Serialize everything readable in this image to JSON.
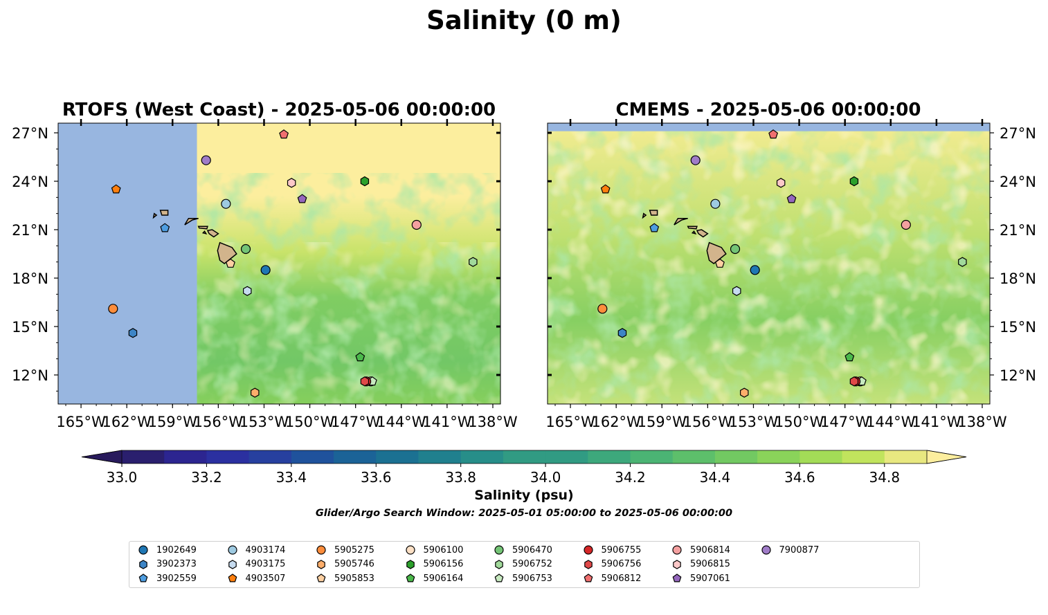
{
  "title": "Salinity (0 m)",
  "colors": {
    "land": "#d2b48c",
    "missing": "#98b6e0"
  },
  "chart_data": [
    {
      "type": "heatmap",
      "title": "RTOFS (West Coast) - 2025-05-06 00:00:00",
      "xlim": [
        -166.5,
        -137.5
      ],
      "ylim": [
        10.2,
        27.6
      ],
      "x_ticks": [
        -165,
        -162,
        -159,
        -156,
        -153,
        -150,
        -147,
        -144,
        -141,
        -138
      ],
      "x_tick_labels": [
        "165°W",
        "162°W",
        "159°W",
        "156°W",
        "153°W",
        "150°W",
        "147°W",
        "144°W",
        "141°W",
        "138°W"
      ],
      "y_ticks": [
        12,
        15,
        18,
        21,
        24,
        27
      ],
      "y_tick_labels": [
        "12°N",
        "15°N",
        "18°N",
        "21°N",
        "24°N",
        "27°N"
      ],
      "no_data_west_of_lon": -157.4,
      "field_note": "Salinity field; high values (>34.8) north of ~22°N, ~34.5 south"
    },
    {
      "type": "heatmap",
      "title": "CMEMS - 2025-05-06 00:00:00",
      "xlim": [
        -166.5,
        -137.5
      ],
      "ylim": [
        10.2,
        27.6
      ],
      "x_ticks": [
        -165,
        -162,
        -159,
        -156,
        -153,
        -150,
        -147,
        -144,
        -141,
        -138
      ],
      "x_tick_labels": [
        "165°W",
        "162°W",
        "159°W",
        "156°W",
        "153°W",
        "150°W",
        "147°W",
        "144°W",
        "141°W",
        "138°W"
      ],
      "y_ticks": [
        12,
        15,
        18,
        21,
        24,
        27
      ],
      "y_tick_labels": [
        "12°N",
        "15°N",
        "18°N",
        "21°N",
        "24°N",
        "27°N"
      ],
      "no_data_north_of_lat": 27.1
    }
  ],
  "floats": [
    {
      "id": "1902649",
      "color": "#1f77b4",
      "marker": "circle",
      "lon": -152.9,
      "lat": 18.5
    },
    {
      "id": "3902373",
      "color": "#3d85c6",
      "marker": "hexagon",
      "lon": -161.6,
      "lat": 14.6
    },
    {
      "id": "3902559",
      "color": "#4e9de0",
      "marker": "pentagon",
      "lon": -159.5,
      "lat": 21.1
    },
    {
      "id": "4903174",
      "color": "#9ecae1",
      "marker": "circle",
      "lon": -155.5,
      "lat": 22.6
    },
    {
      "id": "4903175",
      "color": "#c6dbef",
      "marker": "hexagon",
      "lon": -154.1,
      "lat": 17.2
    },
    {
      "id": "4903507",
      "color": "#ff7f0e",
      "marker": "pentagon",
      "lon": -162.7,
      "lat": 23.5
    },
    {
      "id": "5905275",
      "color": "#fd8d3c",
      "marker": "circle",
      "lon": -162.9,
      "lat": 16.1
    },
    {
      "id": "5905746",
      "color": "#fdae6b",
      "marker": "hexagon",
      "lon": -153.6,
      "lat": 10.9
    },
    {
      "id": "5905853",
      "color": "#fdd0a2",
      "marker": "pentagon",
      "lon": -155.2,
      "lat": 18.9
    },
    {
      "id": "5906100",
      "color": "#fde0c5",
      "marker": "circle",
      "lon": -146.0,
      "lat": 11.6
    },
    {
      "id": "5906156",
      "color": "#2ca02c",
      "marker": "hexagon",
      "lon": -146.4,
      "lat": 24.0
    },
    {
      "id": "5906164",
      "color": "#4bb84b",
      "marker": "pentagon",
      "lon": -146.7,
      "lat": 13.1
    },
    {
      "id": "5906470",
      "color": "#74c476",
      "marker": "circle",
      "lon": -154.2,
      "lat": 19.8
    },
    {
      "id": "5906752",
      "color": "#a1d99b",
      "marker": "hexagon",
      "lon": -139.3,
      "lat": 19.0
    },
    {
      "id": "5906753",
      "color": "#c7e9c0",
      "marker": "pentagon",
      "lon": -145.9,
      "lat": 11.6
    },
    {
      "id": "5906755",
      "color": "#d62728",
      "marker": "circle",
      "lon": -146.3,
      "lat": 11.6
    },
    {
      "id": "5906756",
      "color": "#e04848",
      "marker": "hexagon",
      "lon": -146.4,
      "lat": 11.6
    },
    {
      "id": "5906812",
      "color": "#f07070",
      "marker": "pentagon",
      "lon": -151.7,
      "lat": 26.9
    },
    {
      "id": "5906814",
      "color": "#f4a0a0",
      "marker": "circle",
      "lon": -143.0,
      "lat": 21.3
    },
    {
      "id": "5906815",
      "color": "#fcc8c8",
      "marker": "hexagon",
      "lon": -151.2,
      "lat": 23.9
    },
    {
      "id": "5907061",
      "color": "#9467bd",
      "marker": "pentagon",
      "lon": -150.5,
      "lat": 22.9
    },
    {
      "id": "7900877",
      "color": "#a07cc8",
      "marker": "circle",
      "lon": -156.8,
      "lat": 25.3
    }
  ],
  "colorbar": {
    "label": "Salinity (psu)",
    "ticks": [
      33.0,
      33.2,
      33.4,
      33.6,
      33.8,
      34.0,
      34.2,
      34.4,
      34.6,
      34.8
    ],
    "tick_labels": [
      "33.0",
      "33.2",
      "33.4",
      "33.6",
      "33.8",
      "34.0",
      "34.2",
      "34.4",
      "34.6",
      "34.8"
    ],
    "min": 33.0,
    "max": 34.9,
    "step": 0.1,
    "colors": [
      "#2a1f6e",
      "#2c2590",
      "#2b30a0",
      "#27409f",
      "#1f529c",
      "#1b6397",
      "#1b7192",
      "#20808e",
      "#278e89",
      "#319b83",
      "#3da87c",
      "#4bb474",
      "#5dbf6b",
      "#72c962",
      "#8ad35a",
      "#a3dc57",
      "#c1e45d",
      "#e8e880"
    ],
    "under_color": "#281a5c",
    "over_color": "#fcee9e"
  },
  "search_window": "Glider/Argo Search Window: 2025-05-01 05:00:00 to 2025-05-06 00:00:00"
}
